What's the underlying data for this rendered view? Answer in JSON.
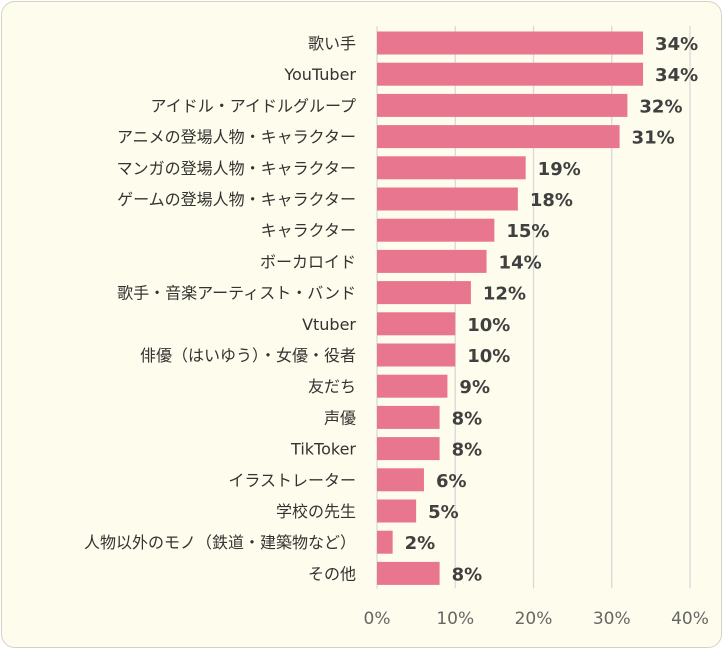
{
  "chart_data": {
    "type": "bar",
    "orientation": "horizontal",
    "categories": [
      "歌い手",
      "YouTuber",
      "アイドル・アイドルグループ",
      "アニメの登場人物・キャラクター",
      "マンガの登場人物・キャラクター",
      "ゲームの登場人物・キャラクター",
      "キャラクター",
      "ボーカロイド",
      "歌手・音楽アーティスト・バンド",
      "Vtuber",
      "俳優（はいゆう）・女優・役者",
      "友だち",
      "声優",
      "TikToker",
      "イラストレーター",
      "学校の先生",
      "人物以外のモノ（鉄道・建築物など）",
      "その他"
    ],
    "values": [
      34,
      34,
      32,
      31,
      19,
      18,
      15,
      14,
      12,
      10,
      10,
      9,
      8,
      8,
      6,
      5,
      2,
      8
    ],
    "value_labels": [
      "34%",
      "34%",
      "32%",
      "31%",
      "19%",
      "18%",
      "15%",
      "14%",
      "12%",
      "10%",
      "10%",
      "9%",
      "8%",
      "8%",
      "6%",
      "5%",
      "2%",
      "8%"
    ],
    "xlim": [
      0,
      40
    ],
    "ticks": [
      0,
      10,
      20,
      30,
      40
    ],
    "tick_labels": [
      "0%",
      "10%",
      "20%",
      "30%",
      "40%"
    ],
    "title": "",
    "xlabel": "",
    "ylabel": "",
    "grid": true,
    "bar_color": "#e8768f",
    "background_color": "#fefcec"
  }
}
